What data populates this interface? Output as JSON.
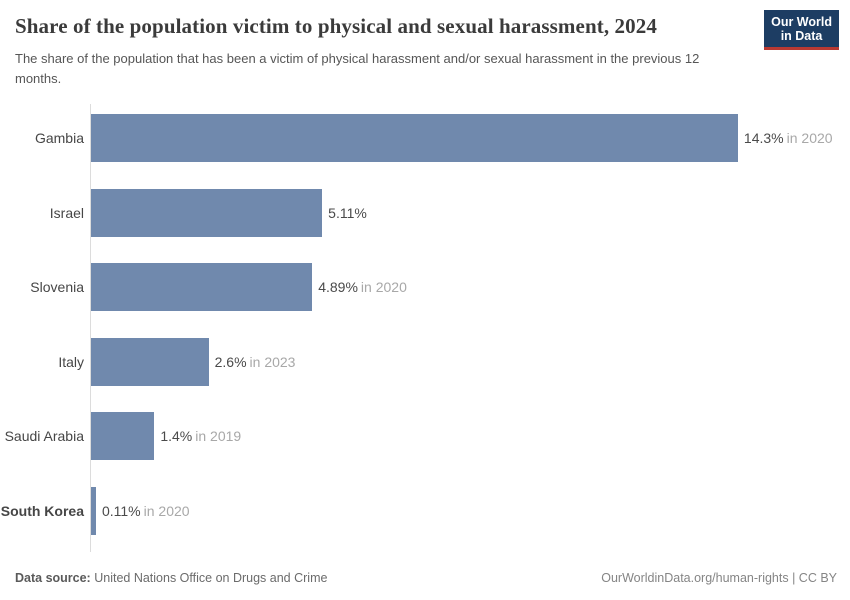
{
  "header": {
    "title": "Share of the population victim to physical and sexual harassment, 2024",
    "subtitle": "The share of the population that has been a victim of physical harassment and/or sexual harassment in the previous 12 months.",
    "logo": {
      "line1": "Our World",
      "line2": "in Data"
    }
  },
  "chart_data": {
    "type": "bar",
    "orientation": "horizontal",
    "title": "Share of the population victim to physical and sexual harassment, 2024",
    "subtitle": "The share of the population that has been a victim of physical harassment and/or sexual harassment in the previous 12 months.",
    "unit": "%",
    "xlim": [
      0,
      14.3
    ],
    "grid": false,
    "legend": "none",
    "bar_color": "#7089ad",
    "categories": [
      "Gambia",
      "Israel",
      "Slovenia",
      "Italy",
      "Saudi Arabia",
      "South Korea"
    ],
    "values": [
      14.3,
      5.11,
      4.89,
      2.6,
      1.4,
      0.11
    ],
    "rows": [
      {
        "label": "Gambia",
        "value": 14.3,
        "value_label": "14.3%",
        "year_label": "in 2020",
        "emphasized": false
      },
      {
        "label": "Israel",
        "value": 5.11,
        "value_label": "5.11%",
        "year_label": "",
        "emphasized": false
      },
      {
        "label": "Slovenia",
        "value": 4.89,
        "value_label": "4.89%",
        "year_label": "in 2020",
        "emphasized": false
      },
      {
        "label": "Italy",
        "value": 2.6,
        "value_label": "2.6%",
        "year_label": "in 2023",
        "emphasized": false
      },
      {
        "label": "Saudi Arabia",
        "value": 1.4,
        "value_label": "1.4%",
        "year_label": "in 2019",
        "emphasized": false
      },
      {
        "label": "South Korea",
        "value": 0.11,
        "value_label": "0.11%",
        "year_label": "in 2020",
        "emphasized": true
      }
    ]
  },
  "footer": {
    "source_label": "Data source:",
    "source_value": "United Nations Office on Drugs and Crime",
    "attribution": "OurWorldinData.org/human-rights | CC BY"
  }
}
